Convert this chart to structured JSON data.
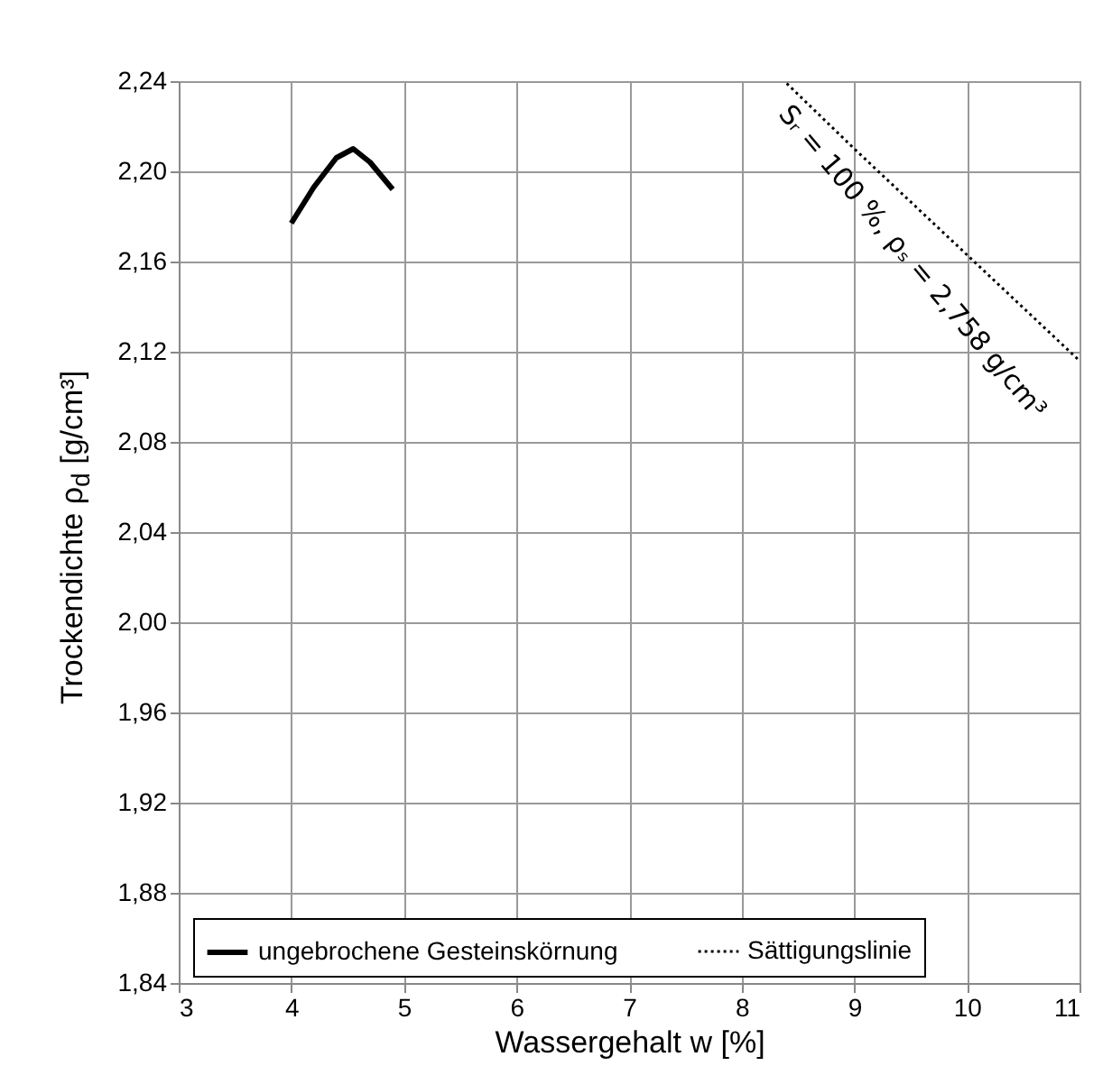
{
  "chart_data": {
    "type": "line",
    "xlabel": "Wassergehalt w [%]",
    "ylabel": "Trockendichte ρ$_{d}$ [g/cm³]",
    "xlim": [
      3,
      11
    ],
    "xticks": [
      3,
      4,
      5,
      6,
      7,
      8,
      9,
      10,
      11
    ],
    "ylim": [
      1.84,
      2.24
    ],
    "yticks": [
      {
        "value": 1.84,
        "label": "1,84"
      },
      {
        "value": 1.88,
        "label": "1,88"
      },
      {
        "value": 1.92,
        "label": "1,92"
      },
      {
        "value": 1.96,
        "label": "1,96"
      },
      {
        "value": 2.0,
        "label": "2,00"
      },
      {
        "value": 2.04,
        "label": "2,04"
      },
      {
        "value": 2.08,
        "label": "2,08"
      },
      {
        "value": 2.12,
        "label": "2,12"
      },
      {
        "value": 2.16,
        "label": "2,16"
      },
      {
        "value": 2.2,
        "label": "2,20"
      },
      {
        "value": 2.24,
        "label": "2,24"
      }
    ],
    "grid": true,
    "legend": "bottom",
    "series": [
      {
        "name": "ungebrochene Gesteinskörnung",
        "color": "#000000",
        "line_style": "solid",
        "x": [
          4.0,
          4.2,
          4.4,
          4.55,
          4.7,
          4.9
        ],
        "values": [
          2.177,
          2.193,
          2.206,
          2.21,
          2.204,
          2.192
        ]
      },
      {
        "name": "Sättigungslinie",
        "color": "#000000",
        "line_style": "dotted",
        "x": [
          8.4,
          9,
          10,
          11
        ],
        "values": [
          2.239,
          2.21,
          2.163,
          2.116
        ]
      }
    ],
    "annotations": [
      "Sᵣ = 100 %, ρₛ = 2,758 g/cm³"
    ]
  }
}
